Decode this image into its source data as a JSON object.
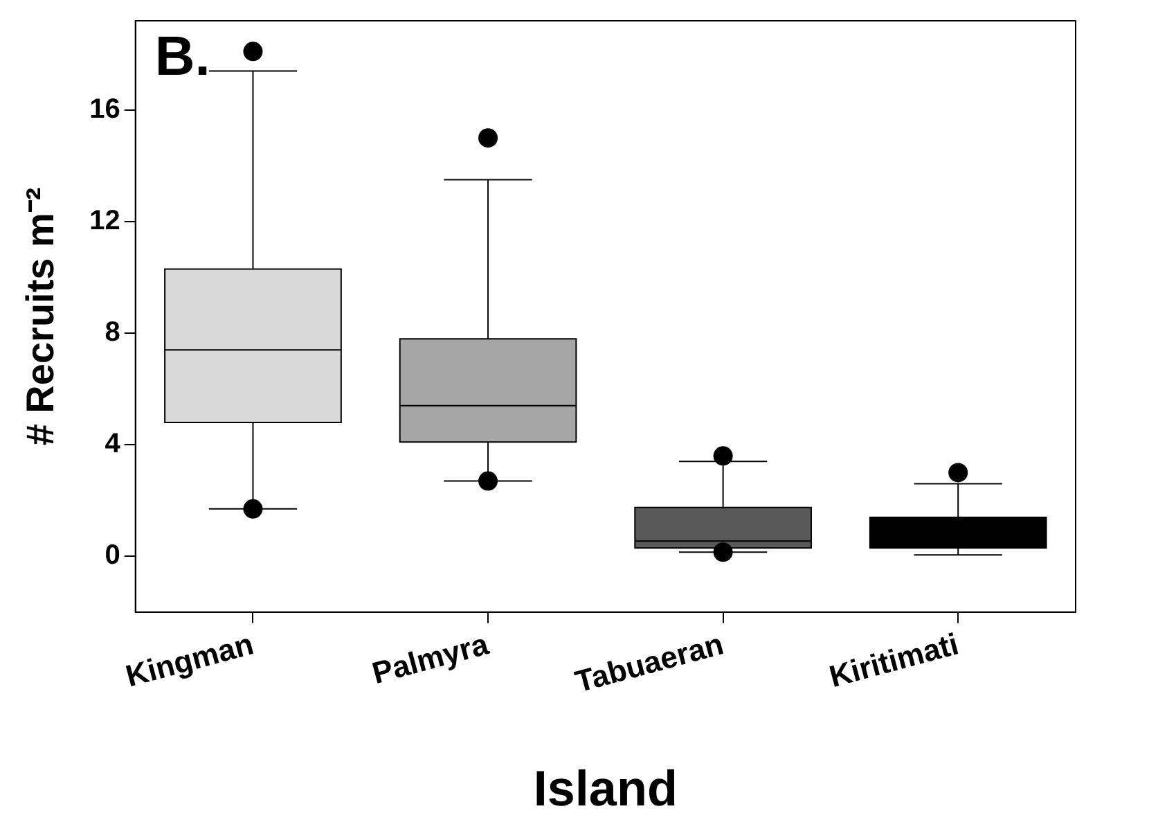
{
  "chart_data": {
    "type": "box",
    "xlabel": "Island",
    "ylabel": "# Recruits m⁻²",
    "annotations": [
      "B."
    ],
    "categories": [
      "Kingman",
      "Palmyra",
      "Tabuaeran",
      "Kiritimati"
    ],
    "colors": [
      "#d9d9d9",
      "#a6a6a6",
      "#595959",
      "#000000"
    ],
    "boxes": [
      {
        "low": 1.7,
        "q1": 4.8,
        "median": 7.4,
        "q3": 10.3,
        "high": 17.4,
        "outliers": [
          18.1,
          1.7
        ]
      },
      {
        "low": 2.7,
        "q1": 4.1,
        "median": 5.4,
        "q3": 7.8,
        "high": 13.5,
        "outliers": [
          15.0,
          2.7
        ]
      },
      {
        "low": 0.15,
        "q1": 0.3,
        "median": 0.55,
        "q3": 1.75,
        "high": 3.4,
        "outliers": [
          3.6,
          0.15
        ]
      },
      {
        "low": 0.05,
        "q1": 0.3,
        "median": 0.7,
        "q3": 1.4,
        "high": 2.6,
        "outliers": [
          3.0
        ]
      }
    ],
    "ylim": [
      -2,
      19.2
    ],
    "yticks": [
      0,
      4,
      8,
      12,
      16
    ]
  }
}
